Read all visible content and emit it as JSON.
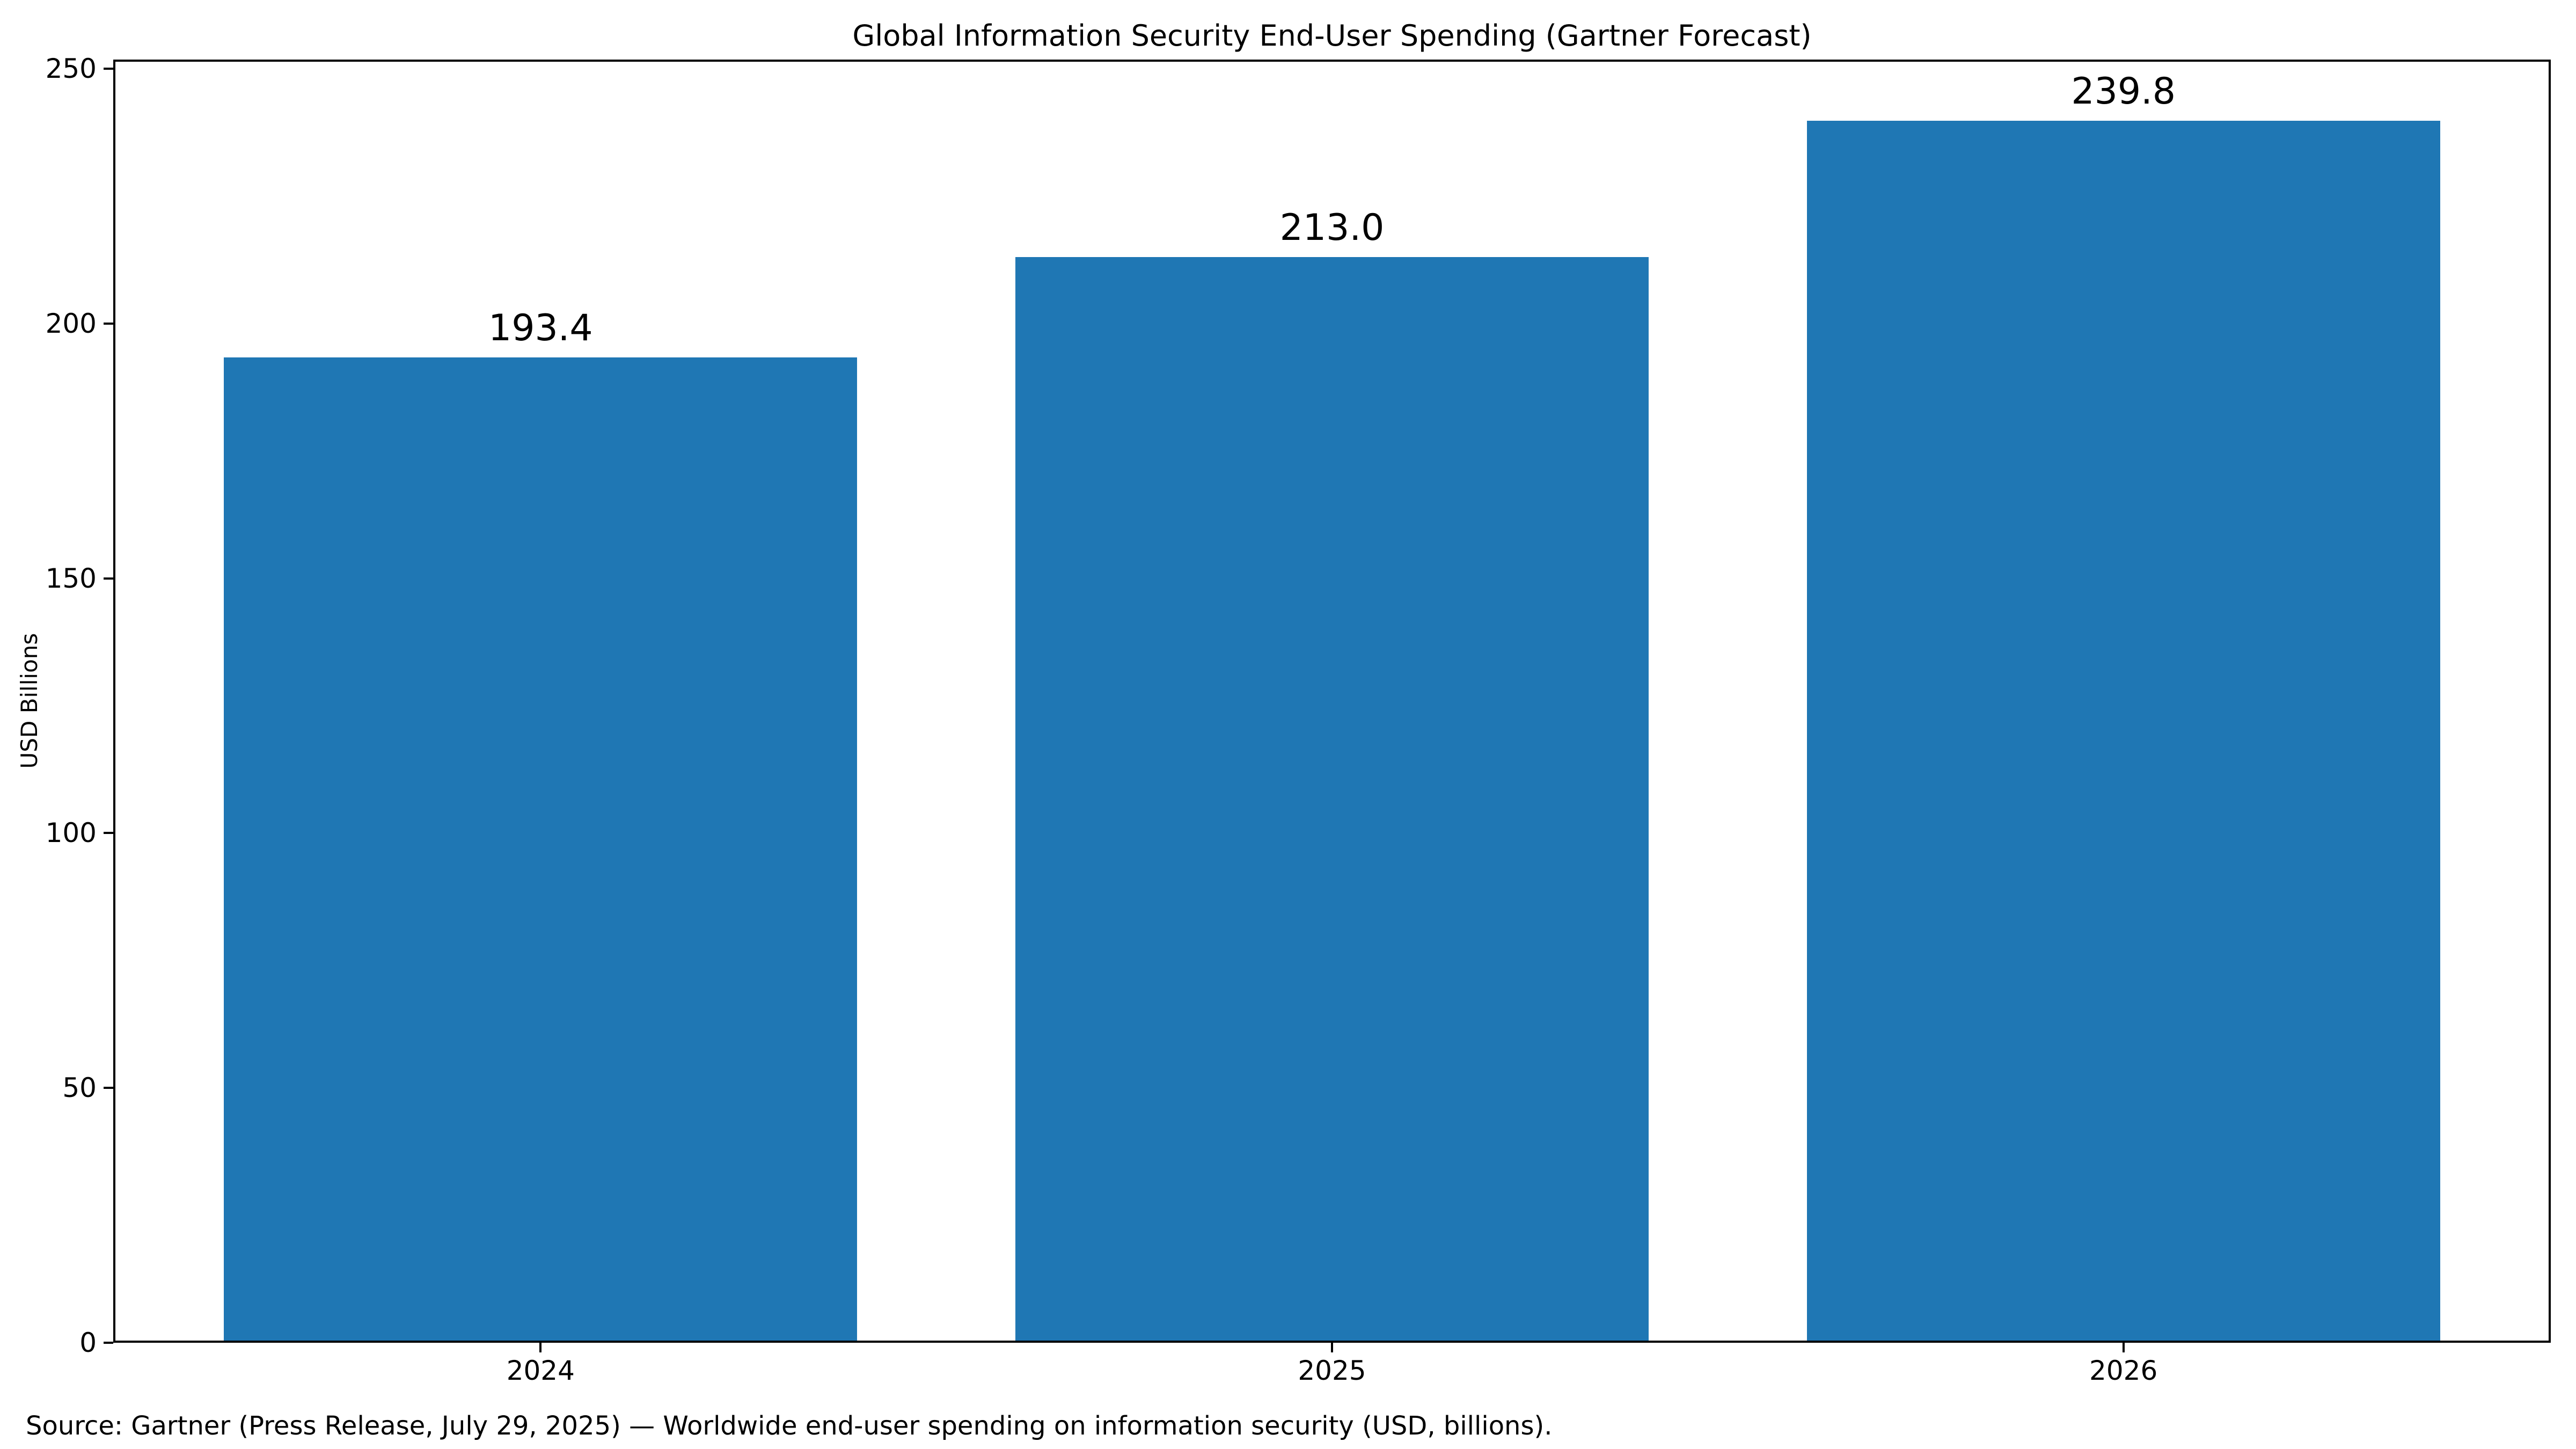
{
  "source_note": "Source: Gartner (Press Release, July 29, 2025) — Worldwide end-user spending on information security (USD, billions).",
  "chart_data": {
    "type": "bar",
    "title": "Global Information Security End-User Spending (Gartner Forecast)",
    "categories": [
      "2024",
      "2025",
      "2026"
    ],
    "values": [
      193.4,
      213.0,
      239.8
    ],
    "value_labels": [
      "193.4",
      "213.0",
      "239.8"
    ],
    "xlabel": "",
    "ylabel": "USD Billions",
    "ylim": [
      0,
      251.8
    ],
    "yticks": [
      0,
      50,
      100,
      150,
      200,
      250
    ],
    "bar_color": "#1f77b4",
    "axis_color": "#000000",
    "grid": false,
    "legend_position": "none"
  }
}
